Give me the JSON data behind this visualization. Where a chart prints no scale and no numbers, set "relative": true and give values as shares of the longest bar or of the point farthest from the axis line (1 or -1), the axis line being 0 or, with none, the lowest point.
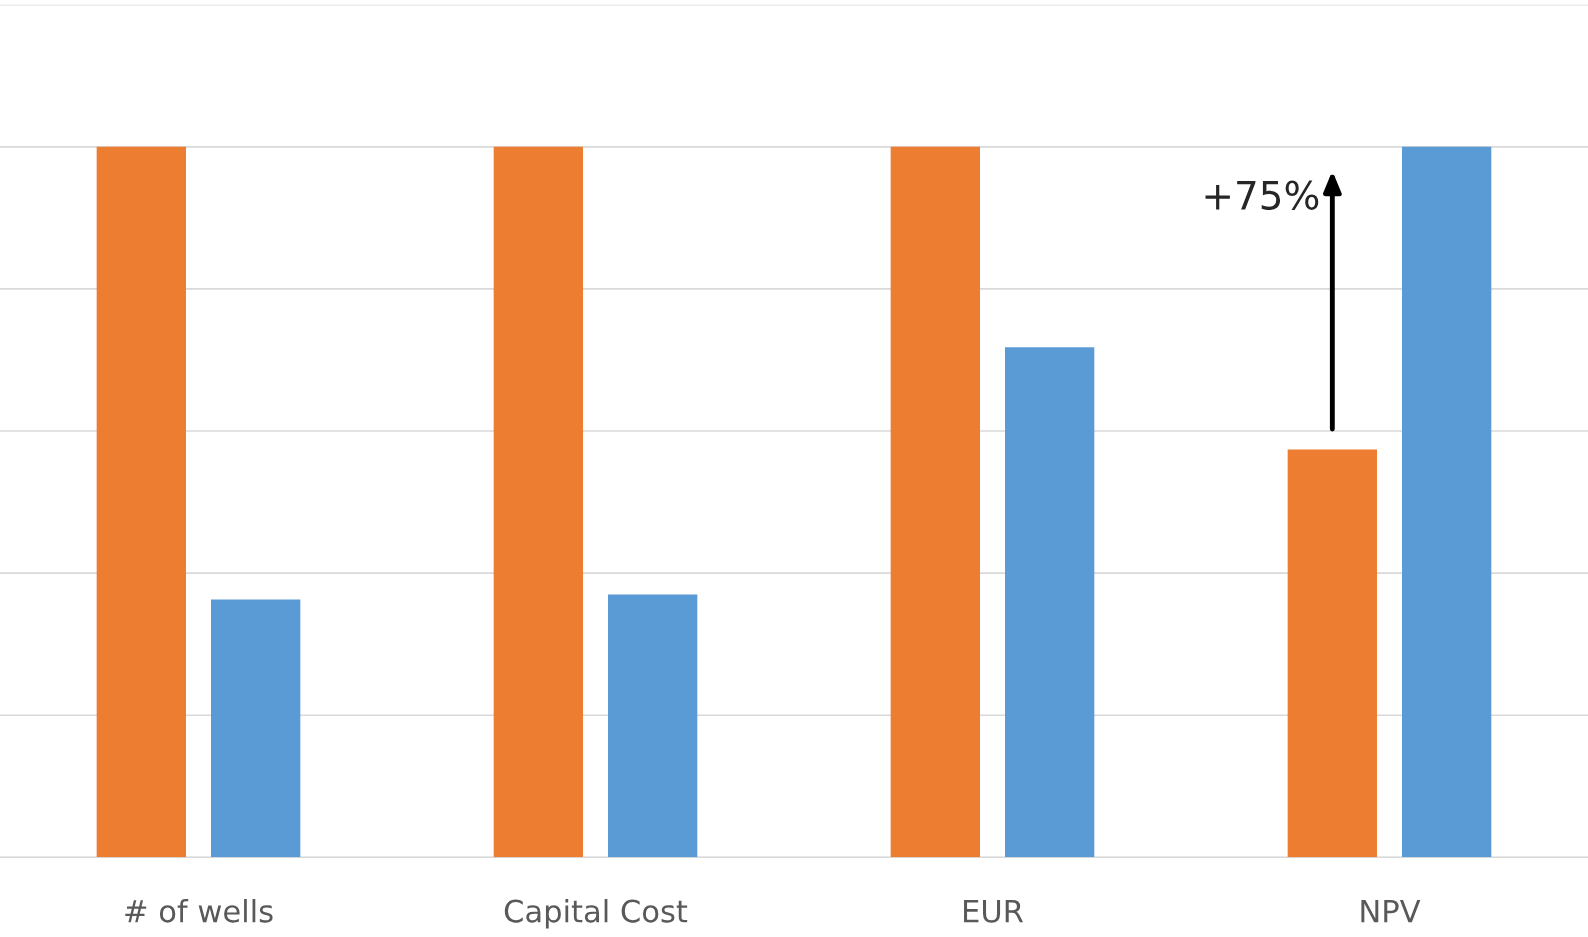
{
  "chart_data": {
    "type": "bar",
    "relative": true,
    "categories": [
      "# of wells",
      "Capital Cost",
      "EUR",
      "NPV"
    ],
    "series": [
      {
        "color": "#ed7d31",
        "values": [
          1,
          1,
          1,
          0.574
        ]
      },
      {
        "color": "#5b9bd5",
        "values": [
          0.363,
          0.37,
          0.718,
          1
        ]
      }
    ],
    "grid": "y",
    "legend": false,
    "annotations": [
      "+75%"
    ]
  }
}
